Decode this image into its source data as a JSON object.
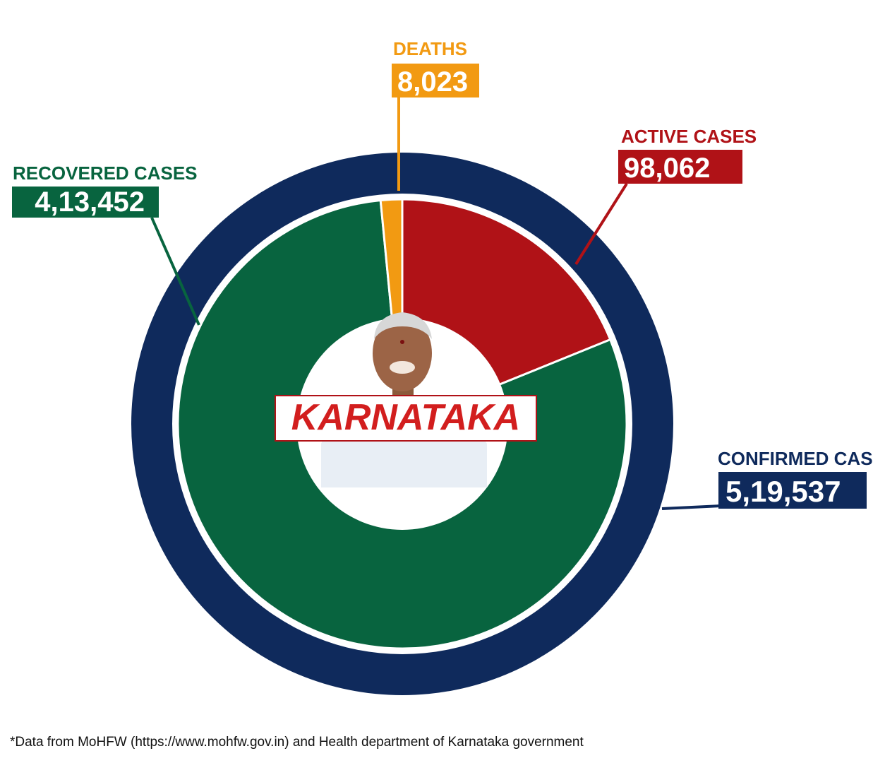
{
  "chart_data": {
    "type": "pie",
    "state": "KARNATAKA",
    "total": {
      "label": "CONFIRMED CASES",
      "value": 519537,
      "display": "5,19,537",
      "color": "#0f2a5c"
    },
    "slices": [
      {
        "label": "ACTIVE CASES",
        "value": 98062,
        "display": "98,062",
        "color": "#b01217"
      },
      {
        "label": "RECOVERED CASES",
        "value": 413452,
        "display": "4,13,452",
        "color": "#08643f"
      },
      {
        "label": "DEATHS",
        "value": 8023,
        "display": "8,023",
        "color": "#f29a12"
      }
    ]
  },
  "footnote": "*Data from MoHFW (https://www.mohfw.gov.in) and Health department of Karnataka government"
}
